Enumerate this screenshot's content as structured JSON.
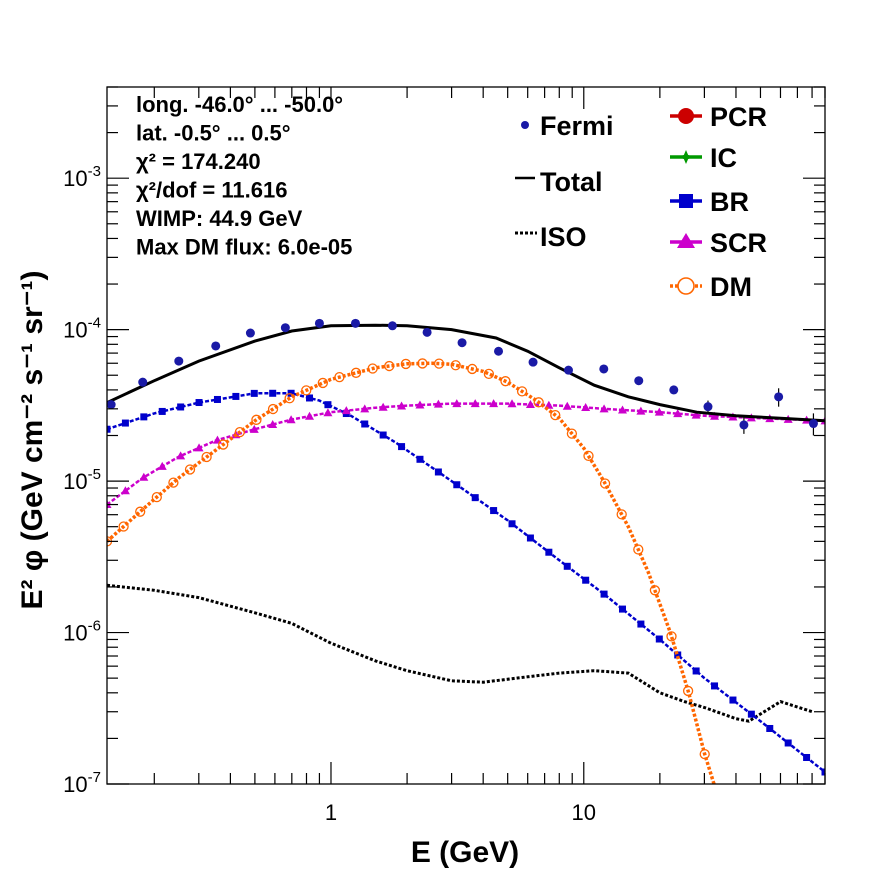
{
  "chart_data": {
    "type": "line",
    "xlabel": "E (GeV)",
    "ylabel": "E² φ (GeV cm⁻² s⁻¹ sr⁻¹)",
    "x_scale": "log",
    "y_scale": "log",
    "xlim": [
      0.13,
      90
    ],
    "ylim": [
      1e-07,
      0.004
    ],
    "x_ticks": [
      {
        "value": 1,
        "label": "1"
      },
      {
        "value": 10,
        "label": "10"
      }
    ],
    "y_ticks": [
      {
        "value": 1e-07,
        "base": "10",
        "exp": "-7"
      },
      {
        "value": 1e-06,
        "base": "10",
        "exp": "-6"
      },
      {
        "value": 1e-05,
        "base": "10",
        "exp": "-5"
      },
      {
        "value": 0.0001,
        "base": "10",
        "exp": "-4"
      },
      {
        "value": 0.001,
        "base": "10",
        "exp": "-3"
      }
    ],
    "info_lines": [
      "long. -46.0° ... -50.0°",
      "lat. -0.5° ... 0.5°",
      "χ² = 174.240",
      "χ²/dof = 11.616",
      "WIMP: 44.9 GeV",
      "Max DM flux: 6.0e-05"
    ],
    "grid": false,
    "legend_placement": "top-right",
    "legend": [
      {
        "name": "Fermi",
        "color": "#1a1aa6",
        "style": "point"
      },
      {
        "name": "Total",
        "color": "#000000",
        "style": "line"
      },
      {
        "name": "ISO",
        "color": "#000000",
        "style": "dotted"
      },
      {
        "name": "PCR",
        "color": "#cc0000",
        "style": "circle"
      },
      {
        "name": "IC",
        "color": "#009900",
        "style": "star"
      },
      {
        "name": "BR",
        "color": "#0000cc",
        "style": "square"
      },
      {
        "name": "SCR",
        "color": "#cc00cc",
        "style": "triangle"
      },
      {
        "name": "DM",
        "color": "#ff6600",
        "style": "open-circle"
      }
    ],
    "series": [
      {
        "name": "Fermi",
        "color": "#1a1aa6",
        "x": [
          0.135,
          0.18,
          0.25,
          0.35,
          0.48,
          0.66,
          0.9,
          1.25,
          1.75,
          2.4,
          3.3,
          4.6,
          6.3,
          8.7,
          12,
          16.5,
          22.7,
          31,
          43,
          59,
          81
        ],
        "y": [
          3.2e-05,
          4.5e-05,
          6.2e-05,
          7.8e-05,
          9.5e-05,
          0.000103,
          0.00011,
          0.00011,
          0.000106,
          9.6e-05,
          8.2e-05,
          7.2e-05,
          6.1e-05,
          5.4e-05,
          5.5e-05,
          4.6e-05,
          4e-05,
          3.1e-05,
          2.35e-05,
          3.6e-05,
          2.4e-05
        ],
        "yerr_low": [
          3.1e-05,
          4.4e-05,
          6.1e-05,
          7.7e-05,
          9.4e-05,
          0.000102,
          0.000109,
          0.000109,
          0.000105,
          9.5e-05,
          8.1e-05,
          7.1e-05,
          6e-05,
          5.3e-05,
          5.3e-05,
          4.4e-05,
          3.75e-05,
          2.8e-05,
          2.05e-05,
          3.1e-05,
          2e-05
        ],
        "yerr_high": [
          3.3e-05,
          4.6e-05,
          6.3e-05,
          7.9e-05,
          9.6e-05,
          0.000104,
          0.000111,
          0.000111,
          0.000107,
          9.7e-05,
          8.3e-05,
          7.3e-05,
          6.2e-05,
          5.5e-05,
          5.7e-05,
          4.8e-05,
          4.25e-05,
          3.4e-05,
          2.65e-05,
          4.1e-05,
          2.8e-05
        ]
      },
      {
        "name": "Total",
        "color": "#000000",
        "x": [
          0.13,
          0.2,
          0.3,
          0.5,
          0.7,
          1.0,
          1.5,
          2.0,
          3.0,
          4.5,
          6.0,
          8.0,
          11,
          15,
          20,
          28,
          40,
          60,
          90
        ],
        "y": [
          3.3e-05,
          4.6e-05,
          6.2e-05,
          8.4e-05,
          9.8e-05,
          0.000106,
          0.000107,
          0.000106,
          0.0001,
          8.8e-05,
          7.2e-05,
          5.6e-05,
          4.3e-05,
          3.6e-05,
          3.2e-05,
          2.85e-05,
          2.7e-05,
          2.6e-05,
          2.5e-05
        ]
      },
      {
        "name": "ISO",
        "color": "#000000",
        "x": [
          0.13,
          0.2,
          0.3,
          0.5,
          0.7,
          1.0,
          1.5,
          2.0,
          3.0,
          4.0,
          6.0,
          8.0,
          11,
          15,
          20,
          25,
          30,
          40,
          45,
          50,
          60,
          80
        ],
        "y": [
          2.05e-06,
          1.9e-06,
          1.7e-06,
          1.35e-06,
          1.15e-06,
          8.5e-07,
          6.5e-07,
          5.6e-07,
          4.8e-07,
          4.7e-07,
          5.1e-07,
          5.4e-07,
          5.6e-07,
          5.4e-07,
          4e-07,
          3.5e-07,
          3.2e-07,
          2.7e-07,
          2.6e-07,
          2.9e-07,
          3.5e-07,
          3e-07
        ]
      },
      {
        "name": "BR",
        "color": "#0000cc",
        "x": [
          0.13,
          0.2,
          0.3,
          0.5,
          0.7,
          0.9,
          1.2,
          1.8,
          3.0,
          5.0,
          8.0,
          12,
          20,
          30,
          50,
          90
        ],
        "y": [
          2.2e-05,
          2.8e-05,
          3.3e-05,
          3.8e-05,
          3.8e-05,
          3.4e-05,
          2.7e-05,
          1.8e-05,
          1e-05,
          5.5e-06,
          3e-06,
          1.8e-06,
          9e-07,
          5e-07,
          2.6e-07,
          1.2e-07
        ]
      },
      {
        "name": "SCR",
        "color": "#cc00cc",
        "x": [
          0.13,
          0.18,
          0.25,
          0.35,
          0.5,
          0.7,
          1.0,
          1.5,
          2.0,
          3.0,
          5.0,
          8.0,
          12,
          20,
          30,
          50,
          90
        ],
        "y": [
          7e-06,
          1.05e-05,
          1.45e-05,
          1.85e-05,
          2.2e-05,
          2.55e-05,
          2.85e-05,
          3.05e-05,
          3.15e-05,
          3.25e-05,
          3.25e-05,
          3.15e-05,
          3e-05,
          2.85e-05,
          2.7e-05,
          2.6e-05,
          2.5e-05
        ]
      },
      {
        "name": "DM",
        "color": "#ff6600",
        "x": [
          0.13,
          0.18,
          0.25,
          0.35,
          0.5,
          0.7,
          1.0,
          1.5,
          2.0,
          2.5,
          3.0,
          4.0,
          5.0,
          6.5,
          8.0,
          10,
          12,
          15,
          18,
          22,
          26,
          30,
          35
        ],
        "y": [
          4e-06,
          6.5e-06,
          1.05e-05,
          1.6e-05,
          2.5e-05,
          3.6e-05,
          4.7e-05,
          5.6e-05,
          5.95e-05,
          6e-05,
          5.9e-05,
          5.3e-05,
          4.5e-05,
          3.4e-05,
          2.6e-05,
          1.65e-05,
          1e-05,
          5e-06,
          2.5e-06,
          1e-06,
          4e-07,
          1.6e-07,
          7e-08
        ]
      }
    ]
  }
}
